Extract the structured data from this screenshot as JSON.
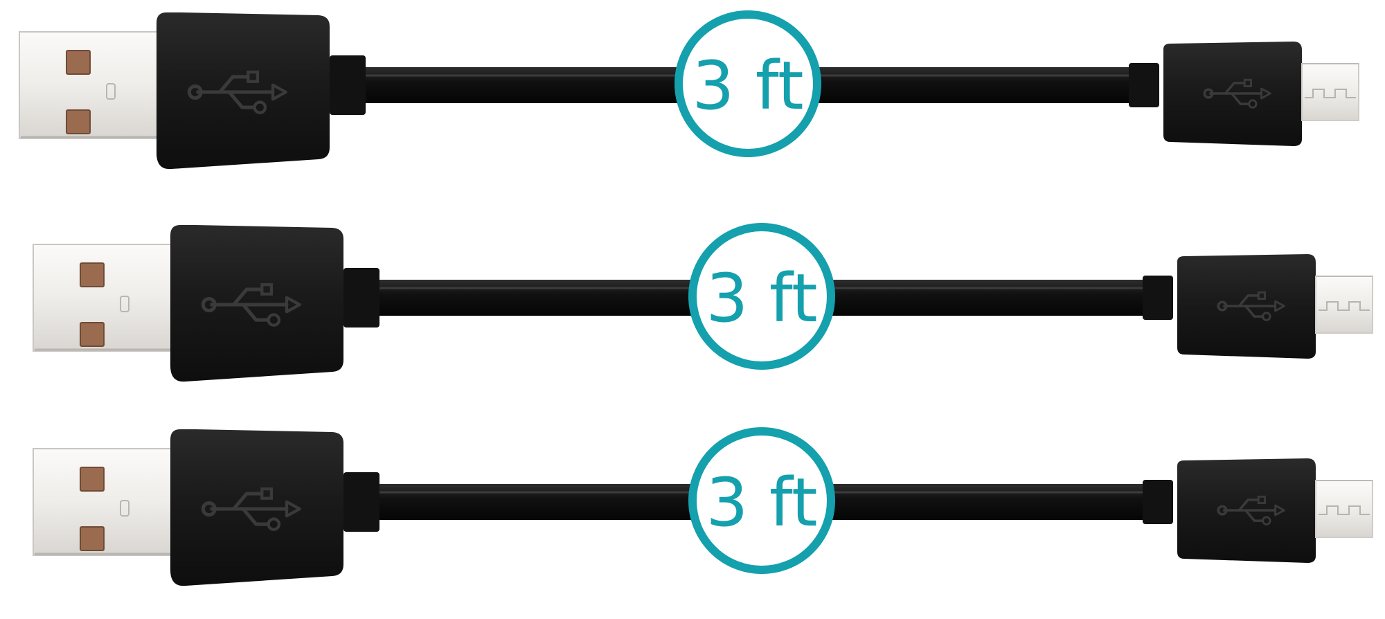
{
  "colors": {
    "background": "#ffffff",
    "cable": "#141414",
    "plastic": "#1c1c1c",
    "metal": "#eeecea",
    "metal_shade": "#d6d3d0",
    "contact": "#9a6b4f",
    "badge_ring": "#14a0ad",
    "badge_fill": "#ffffff",
    "badge_text": "#14a0ad"
  },
  "icons": {
    "usb_symbol": "usb-icon"
  },
  "cables": [
    {
      "length_label": "3 ft",
      "connector_a": "usb-a",
      "connector_b": "micro-usb"
    },
    {
      "length_label": "3 ft",
      "connector_a": "usb-a",
      "connector_b": "micro-usb"
    },
    {
      "length_label": "3 ft",
      "connector_a": "usb-a",
      "connector_b": "micro-usb"
    }
  ]
}
